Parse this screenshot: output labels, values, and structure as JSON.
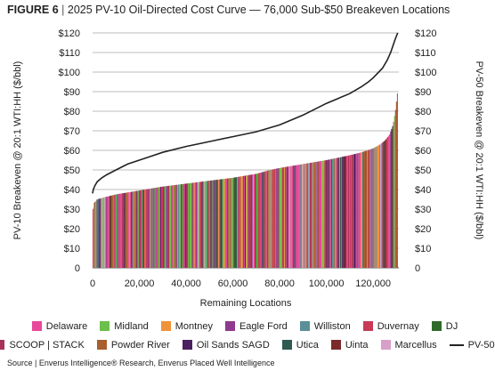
{
  "header": {
    "figure_label": "FIGURE 6",
    "separator": "|",
    "title_text": "2025 PV-10 Oil-Directed Cost Curve — 76,000 Sub-$50 Breakeven Locations"
  },
  "source_note": "Source | Enverus Intelligence® Research, Enverus Placed Well Intelligence",
  "chart_data": {
    "type": "bar",
    "title": "2025 PV-10 Oil-Directed Cost Curve — 76,000 Sub-$50 Breakeven Locations",
    "xlabel": "Remaining Locations",
    "ylabel": "PV-10 Breakeven @ 20:1 WTI:HH ($/bbl)",
    "y2label": "PV-50 Breakeven @ 20:1 WTI:HH ($/bbl)",
    "xlim": [
      0,
      131000
    ],
    "ylim": [
      0,
      120
    ],
    "x_ticks": [
      0,
      20000,
      40000,
      60000,
      80000,
      100000,
      120000
    ],
    "x_tick_labels": [
      "0",
      "20,000",
      "40,000",
      "60,000",
      "80,000",
      "100,000",
      "120,000"
    ],
    "y_ticks": [
      0,
      10,
      20,
      30,
      40,
      50,
      60,
      70,
      80,
      90,
      100,
      110,
      120
    ],
    "y_tick_labels": [
      "0",
      "$10",
      "$20",
      "$30",
      "$40",
      "$50",
      "$60",
      "$70",
      "$80",
      "$90",
      "$100",
      "$110",
      "$120"
    ],
    "y2_tick_labels": [
      "0",
      "$10",
      "$20",
      "$30",
      "$40",
      "$50",
      "$60",
      "$70",
      "$80",
      "$90",
      "$100",
      "$110",
      "$120"
    ],
    "grid": "horizontal",
    "legend_position": "bottom",
    "categories": [
      "Delaware",
      "Midland",
      "Montney",
      "Eagle Ford",
      "Williston",
      "Duvernay",
      "DJ",
      "SCOOP | STACK",
      "Powder River",
      "Oil Sands SAGD",
      "Utica",
      "Uinta",
      "Marcellus"
    ],
    "colors": [
      "#e8489a",
      "#6cbf4b",
      "#f0923a",
      "#8e3a8e",
      "#5a8f98",
      "#c83a55",
      "#2e6a2a",
      "#a8305a",
      "#a8602e",
      "#4a2060",
      "#2e5a52",
      "#7a2a2a",
      "#d8a0c8"
    ],
    "pv10_curve": {
      "name": "PV-10",
      "x": [
        0,
        500,
        2000,
        5000,
        10000,
        20000,
        30000,
        40000,
        50000,
        60000,
        70000,
        76000,
        80000,
        90000,
        100000,
        110000,
        115000,
        120000,
        123000,
        125000,
        127000,
        128500,
        129500,
        130500
      ],
      "y": [
        28,
        33,
        35,
        36,
        37.5,
        39.5,
        41.5,
        43,
        44.5,
        46,
        48,
        50,
        51,
        53,
        55,
        57.5,
        59,
        61,
        63,
        65,
        68,
        73,
        80,
        90
      ]
    },
    "series": [
      {
        "name": "PV-50",
        "x": [
          0,
          300,
          1000,
          2000,
          4000,
          6000,
          10000,
          15000,
          20000,
          25000,
          30000,
          40000,
          50000,
          60000,
          70000,
          80000,
          90000,
          95000,
          100000,
          105000,
          110000,
          115000,
          118000,
          120000,
          122000,
          124000,
          126000,
          127500,
          128500,
          129500,
          130500
        ],
        "y": [
          38,
          40,
          42,
          44,
          46,
          47.5,
          50,
          53,
          55,
          57,
          59,
          62,
          64.5,
          67,
          69.5,
          73,
          78,
          81,
          84,
          86.5,
          89,
          92.5,
          95,
          97,
          99.5,
          102,
          106,
          110,
          113.5,
          117,
          120
        ]
      }
    ]
  }
}
